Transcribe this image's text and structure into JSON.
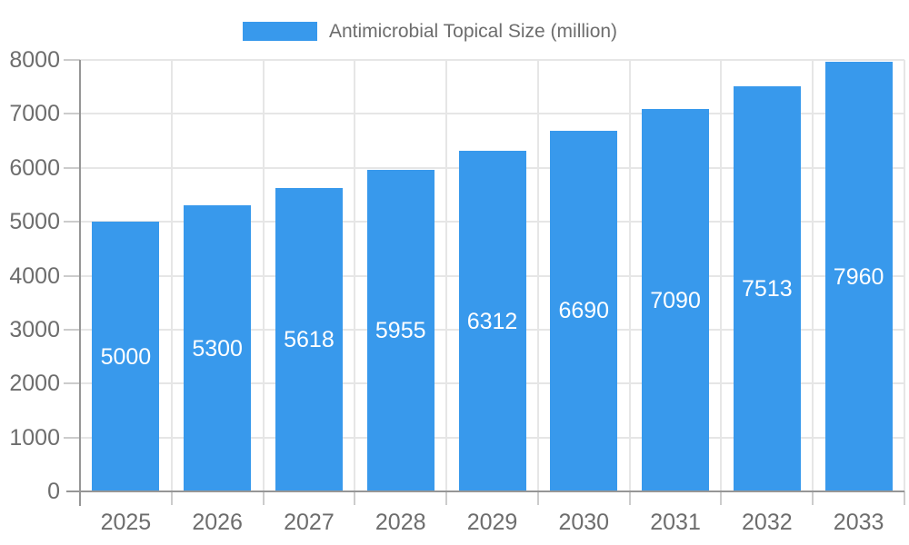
{
  "chart_data": {
    "type": "bar",
    "title": "Antimicrobial Topical Size (million)",
    "categories": [
      "2025",
      "2026",
      "2027",
      "2028",
      "2029",
      "2030",
      "2031",
      "2032",
      "2033"
    ],
    "values": [
      5000,
      5300,
      5618,
      5955,
      6312,
      6690,
      7090,
      7513,
      7960
    ],
    "bar_value_labels": [
      "5000",
      "5300",
      "5618",
      "5955",
      "6312",
      "6690",
      "7090",
      "7513",
      "7960"
    ],
    "xlabel": "",
    "ylabel": "",
    "ylim": [
      0,
      8000
    ],
    "ytick_step": 1000,
    "ytick_labels": [
      "0",
      "1000",
      "2000",
      "3000",
      "4000",
      "5000",
      "6000",
      "7000",
      "8000"
    ],
    "legend_position": "top-center",
    "grid": true,
    "colors": {
      "bar": "#3899EC",
      "bar_label": "#FFFFFF",
      "axis_text": "#6D6D6D",
      "legend_text": "#6D6D6D",
      "gridline": "#E6E6E6",
      "tick": "#CCCCCC",
      "axis_line": "#969696",
      "background": "#FFFFFF"
    }
  }
}
